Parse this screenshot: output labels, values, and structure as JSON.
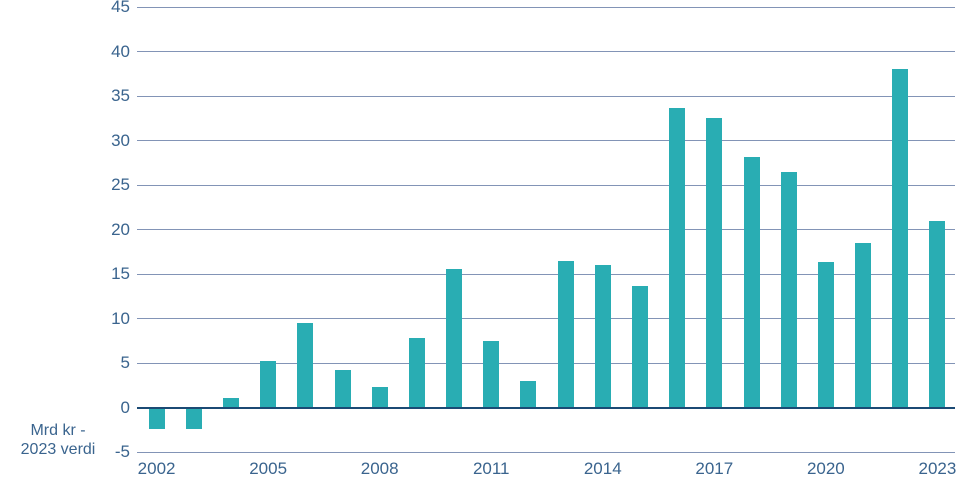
{
  "chart_data": {
    "type": "bar",
    "title": "",
    "ylabel_lines": [
      "Mrd kr -",
      "2023 verdi"
    ],
    "categories": [
      "2002",
      "2003",
      "2004",
      "2005",
      "2006",
      "2007",
      "2008",
      "2009",
      "2010",
      "2011",
      "2012",
      "2013",
      "2014",
      "2015",
      "2016",
      "2017",
      "2018",
      "2019",
      "2020",
      "2021",
      "2022",
      "2023"
    ],
    "values": [
      -2.4,
      -2.4,
      1.1,
      5.2,
      9.5,
      4.2,
      2.3,
      7.8,
      15.6,
      7.5,
      3.0,
      16.5,
      16.0,
      13.7,
      33.7,
      32.5,
      28.2,
      26.5,
      16.3,
      18.5,
      38.0,
      21.0
    ],
    "ylim": [
      -5,
      45
    ],
    "ytick_values": [
      45,
      40,
      35,
      30,
      25,
      20,
      15,
      10,
      5,
      0,
      -5
    ],
    "ytick_labels": [
      "45",
      "40",
      "35",
      "30",
      "25",
      "20",
      "15",
      "10",
      "5",
      "0",
      "-5"
    ],
    "xticks": [
      {
        "label": "2002",
        "index": 0
      },
      {
        "label": "2005",
        "index": 3
      },
      {
        "label": "2008",
        "index": 6
      },
      {
        "label": "2011",
        "index": 9
      },
      {
        "label": "2014",
        "index": 12
      },
      {
        "label": "2017",
        "index": 15
      },
      {
        "label": "2020",
        "index": 18
      },
      {
        "label": "2023",
        "index": 21
      }
    ],
    "grid": true,
    "legend": false,
    "colors": {
      "bar": "#29ADB3",
      "grid": "#8294B6",
      "zero_line": "#1B4A74",
      "text": "#3A648E",
      "background": "#FFFFFF"
    }
  }
}
